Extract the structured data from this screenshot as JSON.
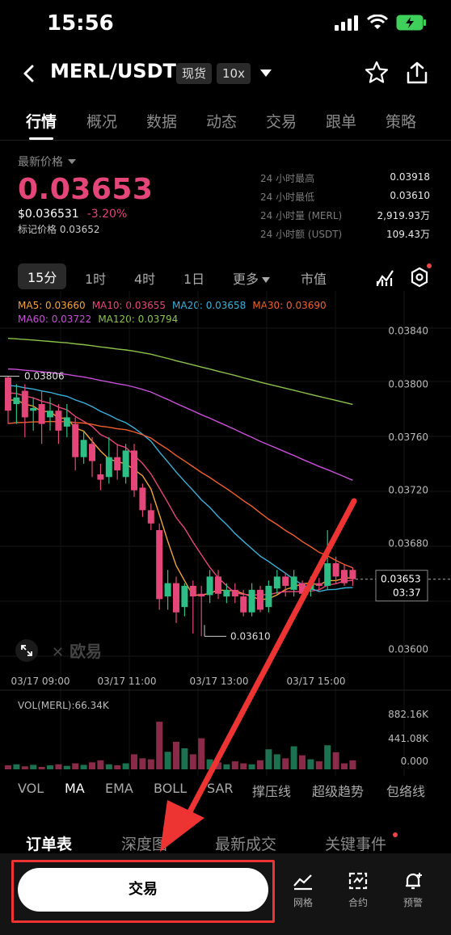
{
  "status_bar": {
    "time": "15:56"
  },
  "header": {
    "pair": "MERL/USDT",
    "market_tag": "现货",
    "leverage_tag": "10x"
  },
  "tabs": [
    {
      "label": "行情",
      "active": true
    },
    {
      "label": "概况"
    },
    {
      "label": "数据"
    },
    {
      "label": "动态"
    },
    {
      "label": "交易"
    },
    {
      "label": "跟单"
    },
    {
      "label": "策略"
    }
  ],
  "price": {
    "latest_label": "最新价格",
    "last": "0.03653",
    "usd": "$0.036531",
    "change": "-3.20%",
    "mark_label": "标记价格",
    "mark_value": "0.03652",
    "down_color": "#e4467a",
    "up_color": "#2ebd85"
  },
  "stats": [
    {
      "label": "24 小时最高",
      "value": "0.03918"
    },
    {
      "label": "24 小时最低",
      "value": "0.03610"
    },
    {
      "label": "24 小时量 (MERL)",
      "value": "2,919.93万"
    },
    {
      "label": "24 小时额 (USDT)",
      "value": "109.43万"
    }
  ],
  "periods": [
    {
      "label": "15分",
      "active": true
    },
    {
      "label": "1时"
    },
    {
      "label": "4时"
    },
    {
      "label": "1日"
    },
    {
      "label": "更多"
    },
    {
      "label": "市值"
    }
  ],
  "ma_legend": [
    {
      "label": "MA5: 0.03660",
      "color": "#f2a33a"
    },
    {
      "label": "MA10: 0.03655",
      "color": "#e8457a"
    },
    {
      "label": "MA20: 0.03658",
      "color": "#3ab0d8"
    },
    {
      "label": "MA30: 0.03690",
      "color": "#f0602a"
    },
    {
      "label": "MA60: 0.03722",
      "color": "#c84fd8"
    },
    {
      "label": "MA120: 0.03794",
      "color": "#8bc34a"
    }
  ],
  "chart_data": {
    "type": "candlestick",
    "y_ticks": [
      "0.03840",
      "0.03800",
      "0.03760",
      "0.03720",
      "0.03680",
      "0.03600"
    ],
    "x_ticks": [
      "03/17 09:00",
      "03/17 11:00",
      "03/17 13:00",
      "03/17 15:00"
    ],
    "high_annotation": "0.03806",
    "low_annotation": "0.03610",
    "current_price": "0.03653",
    "countdown": "03:37",
    "watermark": "欧易",
    "candles": [
      {
        "o": 0.03805,
        "c": 0.0378,
        "h": 0.03806,
        "l": 0.0377
      },
      {
        "o": 0.03785,
        "c": 0.0379,
        "h": 0.038,
        "l": 0.0377
      },
      {
        "o": 0.03795,
        "c": 0.03775,
        "h": 0.038,
        "l": 0.0376
      },
      {
        "o": 0.0378,
        "c": 0.03782,
        "h": 0.0379,
        "l": 0.03765
      },
      {
        "o": 0.03785,
        "c": 0.0377,
        "h": 0.03795,
        "l": 0.03755
      },
      {
        "o": 0.03775,
        "c": 0.0378,
        "h": 0.0379,
        "l": 0.03765
      },
      {
        "o": 0.0378,
        "c": 0.03765,
        "h": 0.03785,
        "l": 0.03755
      },
      {
        "o": 0.03768,
        "c": 0.03775,
        "h": 0.03785,
        "l": 0.0376
      },
      {
        "o": 0.0377,
        "c": 0.03745,
        "h": 0.03775,
        "l": 0.03735
      },
      {
        "o": 0.03745,
        "c": 0.03758,
        "h": 0.03765,
        "l": 0.0374
      },
      {
        "o": 0.03755,
        "c": 0.03742,
        "h": 0.0376,
        "l": 0.0373
      },
      {
        "o": 0.03732,
        "c": 0.03728,
        "h": 0.0374,
        "l": 0.0372
      },
      {
        "o": 0.0373,
        "c": 0.03745,
        "h": 0.0376,
        "l": 0.03725
      },
      {
        "o": 0.03745,
        "c": 0.03735,
        "h": 0.03755,
        "l": 0.03728
      },
      {
        "o": 0.0373,
        "c": 0.0375,
        "h": 0.03755,
        "l": 0.03725
      },
      {
        "o": 0.0375,
        "c": 0.0372,
        "h": 0.03755,
        "l": 0.03715
      },
      {
        "o": 0.03722,
        "c": 0.03705,
        "h": 0.03725,
        "l": 0.037
      },
      {
        "o": 0.03705,
        "c": 0.03695,
        "h": 0.0371,
        "l": 0.0369
      },
      {
        "o": 0.0369,
        "c": 0.03638,
        "h": 0.03695,
        "l": 0.0363
      },
      {
        "o": 0.0364,
        "c": 0.0365,
        "h": 0.0366,
        "l": 0.0363
      },
      {
        "o": 0.0365,
        "c": 0.03628,
        "h": 0.03655,
        "l": 0.0362
      },
      {
        "o": 0.03632,
        "c": 0.03648,
        "h": 0.0365,
        "l": 0.03625
      },
      {
        "o": 0.03648,
        "c": 0.0364,
        "h": 0.03652,
        "l": 0.03612
      },
      {
        "o": 0.03642,
        "c": 0.0364,
        "h": 0.03648,
        "l": 0.0361
      },
      {
        "o": 0.03641,
        "c": 0.03655,
        "h": 0.0366,
        "l": 0.03635
      },
      {
        "o": 0.03655,
        "c": 0.03642,
        "h": 0.0366,
        "l": 0.03638
      },
      {
        "o": 0.0364,
        "c": 0.03645,
        "h": 0.0365,
        "l": 0.03635
      },
      {
        "o": 0.03645,
        "c": 0.0364,
        "h": 0.0365,
        "l": 0.03635
      },
      {
        "o": 0.0364,
        "c": 0.03628,
        "h": 0.03645,
        "l": 0.03625
      },
      {
        "o": 0.03628,
        "c": 0.03645,
        "h": 0.0365,
        "l": 0.03625
      },
      {
        "o": 0.03645,
        "c": 0.0363,
        "h": 0.03648,
        "l": 0.03628
      },
      {
        "o": 0.03632,
        "c": 0.03648,
        "h": 0.03652,
        "l": 0.03628
      },
      {
        "o": 0.03646,
        "c": 0.03655,
        "h": 0.0366,
        "l": 0.03642
      },
      {
        "o": 0.03655,
        "c": 0.03648,
        "h": 0.03658,
        "l": 0.0364
      },
      {
        "o": 0.03645,
        "c": 0.03655,
        "h": 0.0366,
        "l": 0.0364
      },
      {
        "o": 0.0365,
        "c": 0.03642,
        "h": 0.03652,
        "l": 0.03638
      },
      {
        "o": 0.03645,
        "c": 0.0365,
        "h": 0.03655,
        "l": 0.0364
      },
      {
        "o": 0.0365,
        "c": 0.03648,
        "h": 0.03654,
        "l": 0.03645
      },
      {
        "o": 0.03648,
        "c": 0.03665,
        "h": 0.0369,
        "l": 0.03645
      },
      {
        "o": 0.03665,
        "c": 0.03655,
        "h": 0.0367,
        "l": 0.0365
      },
      {
        "o": 0.0366,
        "c": 0.0365,
        "h": 0.03664,
        "l": 0.03648
      },
      {
        "o": 0.0366,
        "c": 0.03653,
        "h": 0.03662,
        "l": 0.03648
      }
    ],
    "volume_label": "VOL(MERL):66.34K",
    "volume_ticks": [
      "882.16K",
      "441.08K",
      "0.000"
    ]
  },
  "indicators": [
    {
      "label": "VOL"
    },
    {
      "label": "MA",
      "active": true
    },
    {
      "label": "EMA"
    },
    {
      "label": "BOLL"
    },
    {
      "label": "SAR"
    },
    {
      "label": "撑压线"
    },
    {
      "label": "超级趋势"
    },
    {
      "label": "包络线"
    }
  ],
  "bottom_tabs": [
    {
      "label": "订单表",
      "active": true
    },
    {
      "label": "深度图"
    },
    {
      "label": "最新成交"
    },
    {
      "label": "关键事件"
    }
  ],
  "action_bar": {
    "trade_label": "交易",
    "grid_label": "网格",
    "contract_label": "合约",
    "alert_label": "预警",
    "highlight_color": "#e33333"
  }
}
